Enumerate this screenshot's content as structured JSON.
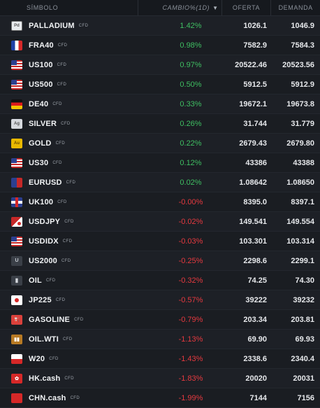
{
  "header": {
    "symbol": "SÍMBOLO",
    "change": "CAMBIO%(1D)",
    "bid": "OFERTA",
    "ask": "DEMANDA"
  },
  "rows": [
    {
      "name": "PALLADIUM",
      "tag": "CFD",
      "change": "1.42%",
      "bid": "1026.1",
      "ask": "1046.9",
      "dir": "pos",
      "flag": "f-pd",
      "icon": "palladium-icon",
      "glyph": "Pd"
    },
    {
      "name": "FRA40",
      "tag": "CFD",
      "change": "0.98%",
      "bid": "7582.9",
      "ask": "7584.3",
      "dir": "pos",
      "flag": "f-fr",
      "icon": "france-flag-icon",
      "glyph": ""
    },
    {
      "name": "US100",
      "tag": "CFD",
      "change": "0.97%",
      "bid": "20522.46",
      "ask": "20523.56",
      "dir": "pos",
      "flag": "f-us",
      "icon": "us-flag-icon",
      "glyph": ""
    },
    {
      "name": "US500",
      "tag": "CFD",
      "change": "0.50%",
      "bid": "5912.5",
      "ask": "5912.9",
      "dir": "pos",
      "flag": "f-us",
      "icon": "us-flag-icon",
      "glyph": ""
    },
    {
      "name": "DE40",
      "tag": "CFD",
      "change": "0.33%",
      "bid": "19672.1",
      "ask": "19673.8",
      "dir": "pos",
      "flag": "f-de",
      "icon": "germany-flag-icon",
      "glyph": ""
    },
    {
      "name": "SILVER",
      "tag": "CFD",
      "change": "0.26%",
      "bid": "31.744",
      "ask": "31.779",
      "dir": "pos",
      "flag": "f-ag",
      "icon": "silver-icon",
      "glyph": "Ag"
    },
    {
      "name": "GOLD",
      "tag": "CFD",
      "change": "0.22%",
      "bid": "2679.43",
      "ask": "2679.80",
      "dir": "pos",
      "flag": "f-au",
      "icon": "gold-icon",
      "glyph": "Au"
    },
    {
      "name": "US30",
      "tag": "CFD",
      "change": "0.12%",
      "bid": "43386",
      "ask": "43388",
      "dir": "pos",
      "flag": "f-us",
      "icon": "us-flag-icon",
      "glyph": ""
    },
    {
      "name": "EURUSD",
      "tag": "CFD",
      "change": "0.02%",
      "bid": "1.08642",
      "ask": "1.08650",
      "dir": "pos",
      "flag": "f-eu",
      "icon": "eur-usd-flag-icon",
      "glyph": ""
    },
    {
      "name": "UK100",
      "tag": "CFD",
      "change": "-0.00%",
      "bid": "8395.0",
      "ask": "8397.1",
      "dir": "neg",
      "flag": "f-uk",
      "icon": "uk-flag-icon",
      "glyph": ""
    },
    {
      "name": "USDJPY",
      "tag": "CFD",
      "change": "-0.02%",
      "bid": "149.541",
      "ask": "149.554",
      "dir": "neg",
      "flag": "f-usjp",
      "icon": "usd-jpy-flag-icon",
      "glyph": ""
    },
    {
      "name": "USDIDX",
      "tag": "CFD",
      "change": "-0.03%",
      "bid": "103.301",
      "ask": "103.314",
      "dir": "neg",
      "flag": "f-us",
      "icon": "us-flag-icon",
      "glyph": ""
    },
    {
      "name": "US2000",
      "tag": "CFD",
      "change": "-0.25%",
      "bid": "2298.6",
      "ask": "2299.1",
      "dir": "neg",
      "flag": "f-u",
      "icon": "us2000-icon",
      "glyph": "U"
    },
    {
      "name": "OIL",
      "tag": "CFD",
      "change": "-0.32%",
      "bid": "74.25",
      "ask": "74.30",
      "dir": "neg",
      "flag": "f-oil",
      "icon": "oil-icon",
      "glyph": "▮"
    },
    {
      "name": "JP225",
      "tag": "CFD",
      "change": "-0.57%",
      "bid": "39222",
      "ask": "39232",
      "dir": "neg",
      "flag": "f-jp",
      "icon": "japan-flag-icon",
      "glyph": ""
    },
    {
      "name": "GASOLINE",
      "tag": "CFD",
      "change": "-0.79%",
      "bid": "203.34",
      "ask": "203.81",
      "dir": "neg",
      "flag": "f-gas",
      "icon": "gasoline-icon",
      "glyph": "⛽"
    },
    {
      "name": "OIL.WTI",
      "tag": "CFD",
      "change": "-1.13%",
      "bid": "69.90",
      "ask": "69.93",
      "dir": "neg",
      "flag": "f-wti",
      "icon": "oil-wti-icon",
      "glyph": "▮▮"
    },
    {
      "name": "W20",
      "tag": "CFD",
      "change": "-1.43%",
      "bid": "2338.6",
      "ask": "2340.4",
      "dir": "neg",
      "flag": "f-pl",
      "icon": "poland-flag-icon",
      "glyph": ""
    },
    {
      "name": "HK.cash",
      "tag": "CFD",
      "change": "-1.83%",
      "bid": "20020",
      "ask": "20031",
      "dir": "neg",
      "flag": "f-hk",
      "icon": "hong-kong-flag-icon",
      "glyph": "✿"
    },
    {
      "name": "CHN.cash",
      "tag": "CFD",
      "change": "-1.99%",
      "bid": "7144",
      "ask": "7156",
      "dir": "neg",
      "flag": "f-cn",
      "icon": "china-flag-icon",
      "glyph": ""
    }
  ]
}
